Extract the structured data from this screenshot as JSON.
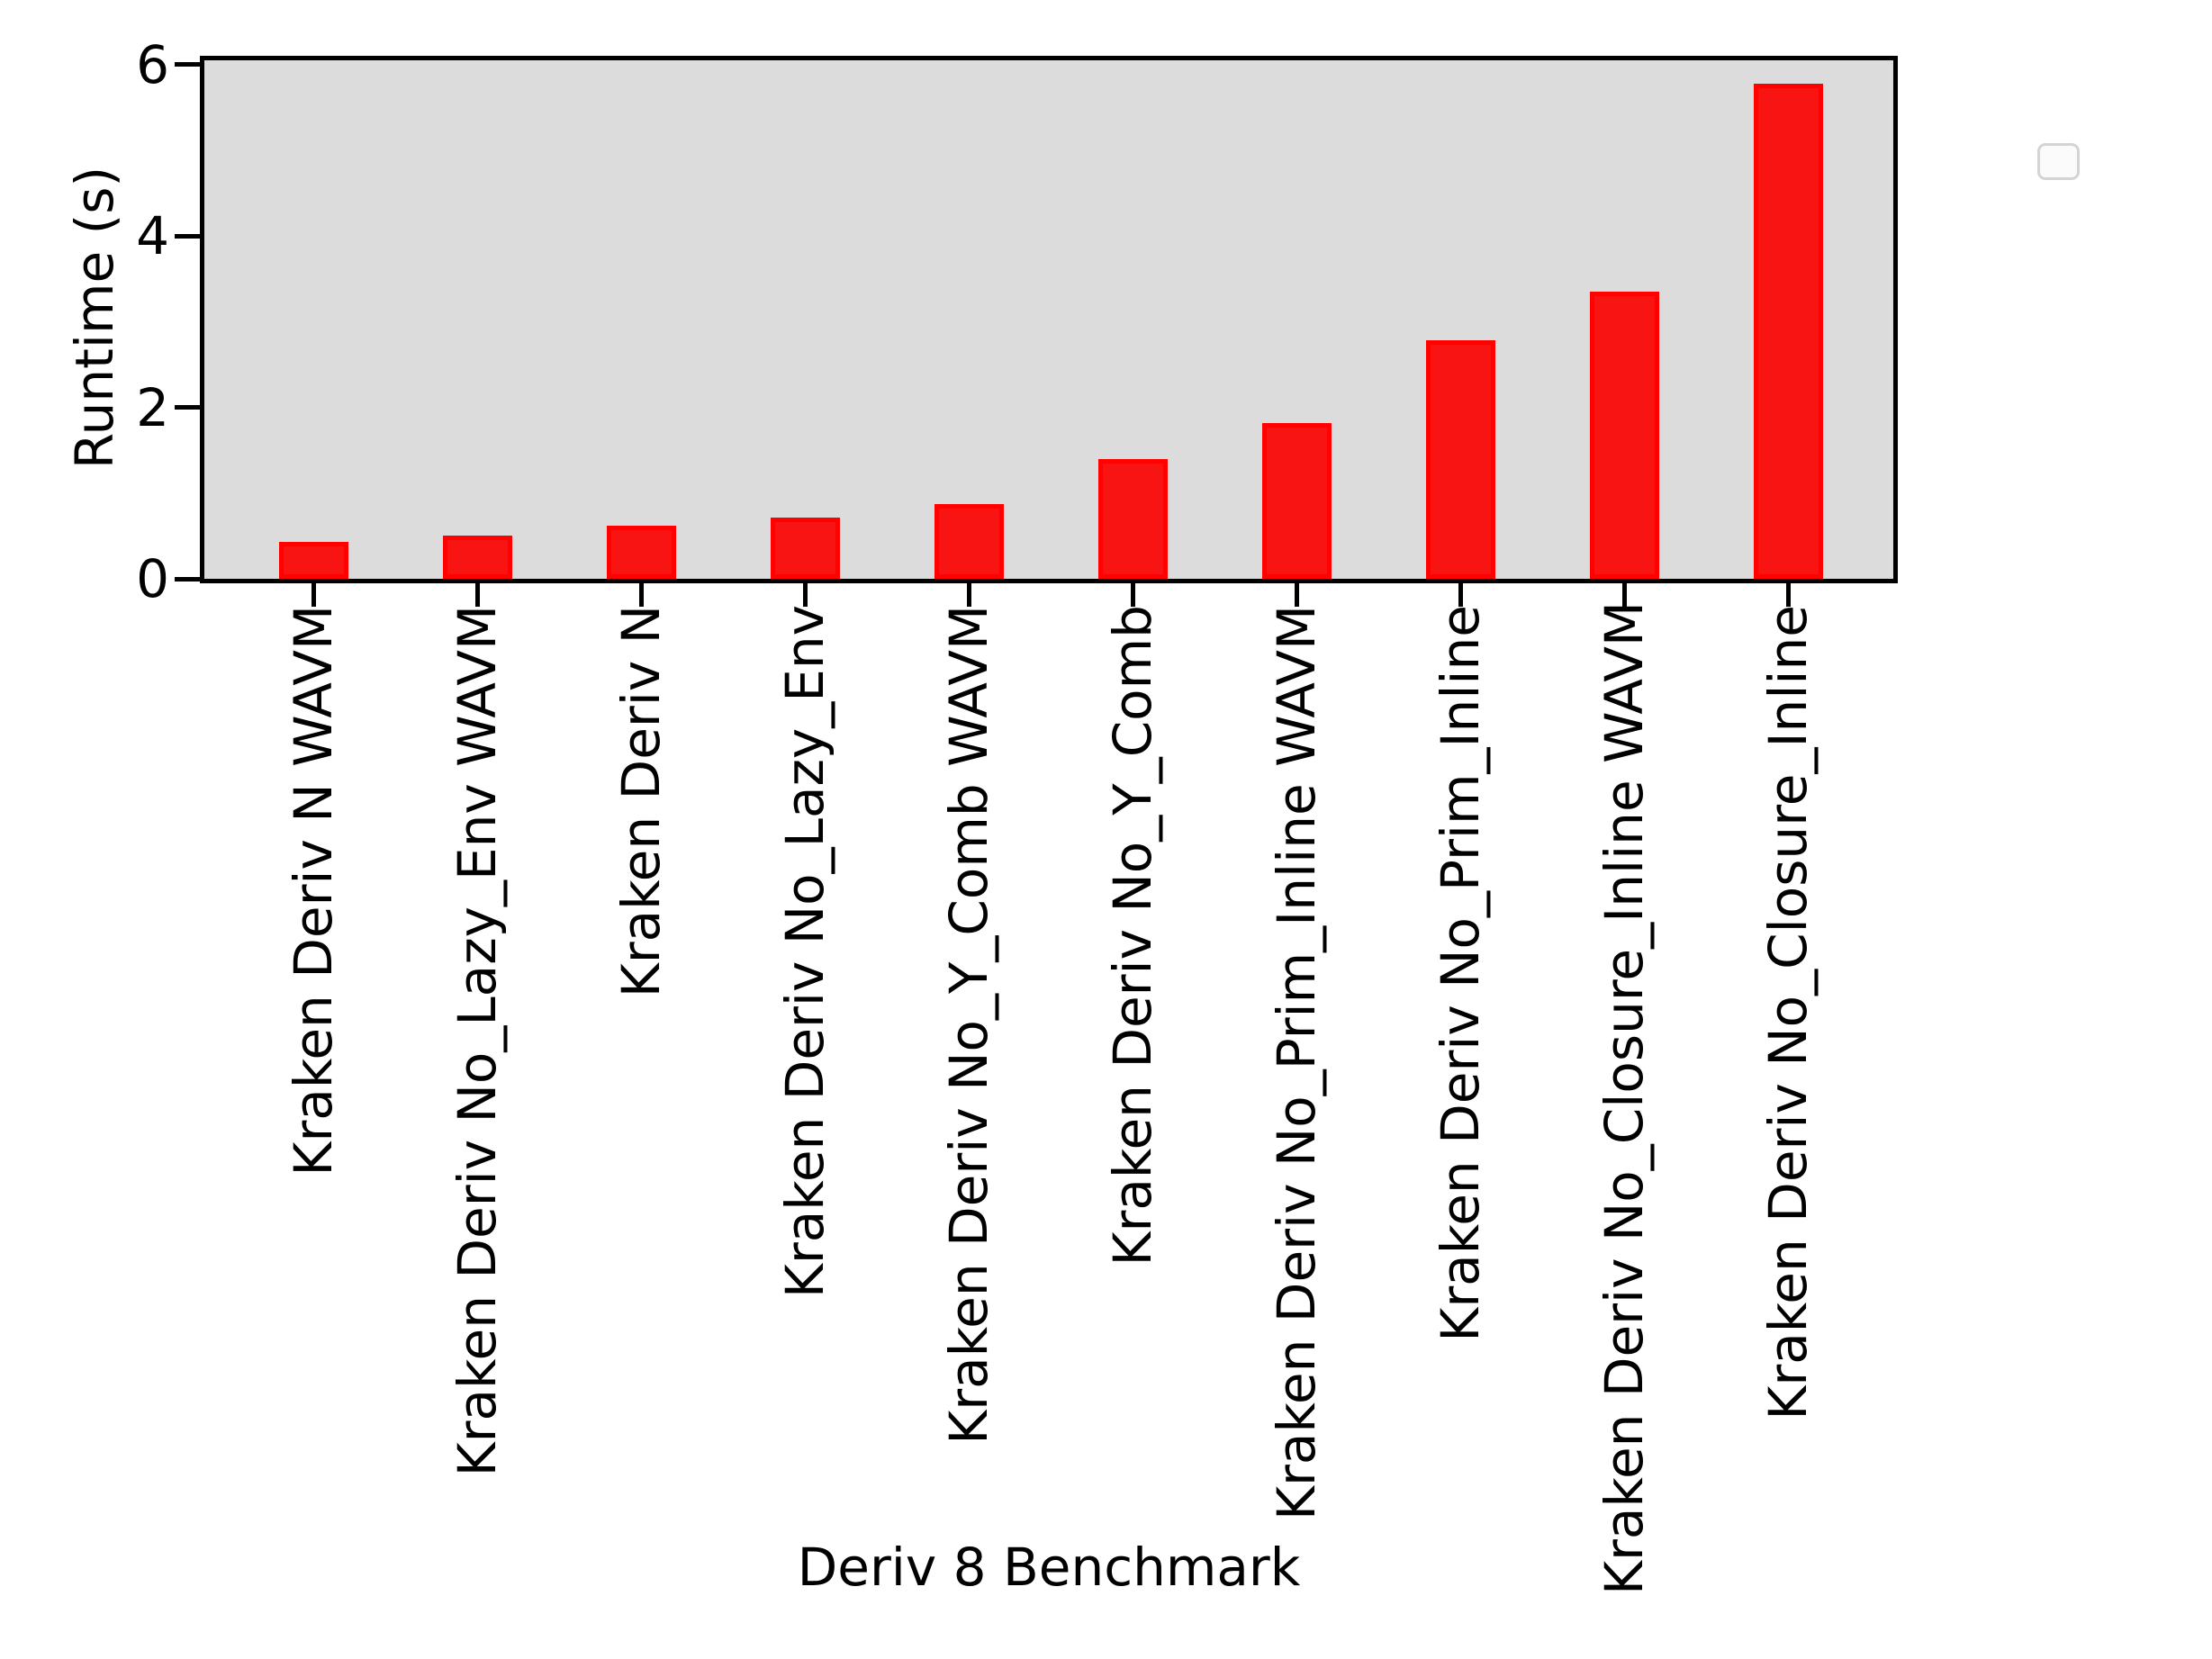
{
  "figure": {
    "background_color": "#ffffff",
    "plot_background_color": "#dcdcdc",
    "spine_color": "#000000",
    "bar_fill_color": "#f91414",
    "bar_edge_color": "#fe0202",
    "legend_background_color": "#fbfbfb",
    "legend_border_color": "#d4d4d4"
  },
  "chart_data": {
    "type": "bar",
    "title": "",
    "xlabel": "Deriv 8 Benchmark",
    "ylabel": "Runtime (s)",
    "categories": [
      "Kraken Deriv N WAVM",
      "Kraken Deriv No_Lazy_Env WAVM",
      "Kraken Deriv N",
      "Kraken Deriv No_Lazy_Env",
      "Kraken Deriv No_Y_Comb WAVM",
      "Kraken Deriv No_Y_Comb",
      "Kraken Deriv No_Prim_Inline WAVM",
      "Kraken Deriv No_Prim_Inline",
      "Kraken Deriv No_Closure_Inline WAVM",
      "Kraken Deriv No_Closure_Inline"
    ],
    "values": [
      0.43,
      0.5,
      0.62,
      0.71,
      0.87,
      1.4,
      1.82,
      2.78,
      3.35,
      5.78
    ],
    "series_color": "#f91414",
    "yticks": [
      0,
      2,
      4,
      6
    ],
    "ylim": [
      0,
      6.05
    ],
    "grid": false,
    "legend": {
      "position": "upper right",
      "entries": []
    }
  }
}
